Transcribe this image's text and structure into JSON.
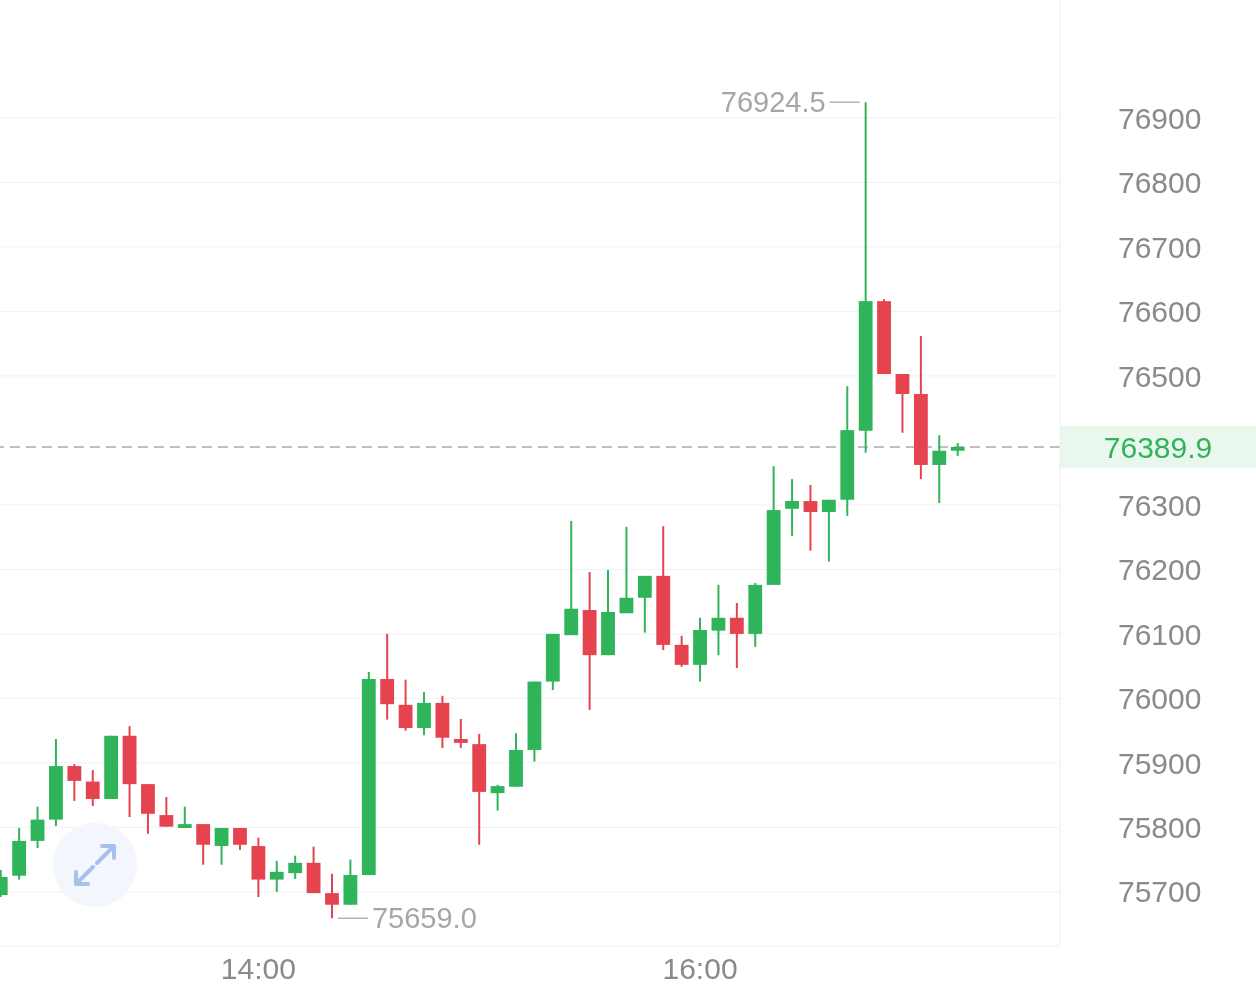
{
  "chart_data": {
    "type": "candlestick",
    "x": [
      12.8333,
      12.9167,
      13.0,
      13.0833,
      13.1667,
      13.25,
      13.3333,
      13.4167,
      13.5,
      13.5833,
      13.6667,
      13.75,
      13.8333,
      13.9167,
      14.0,
      14.0833,
      14.1667,
      14.25,
      14.3333,
      14.4167,
      14.5,
      14.5833,
      14.6667,
      14.75,
      14.8333,
      14.9167,
      15.0,
      15.0833,
      15.1667,
      15.25,
      15.3333,
      15.4167,
      15.5,
      15.5833,
      15.6667,
      15.75,
      15.8333,
      15.9167,
      16.0,
      16.0833,
      16.1667,
      16.25,
      16.3333,
      16.4167,
      16.5,
      16.5833,
      16.6667,
      16.75,
      16.8333,
      16.9167,
      17.0,
      17.0833,
      17.1667
    ],
    "ohlc": [
      [
        75695,
        75734,
        75692,
        75723
      ],
      [
        75725,
        75799,
        75719,
        75779
      ],
      [
        75779,
        75832,
        75768,
        75812
      ],
      [
        75812,
        75937,
        75802,
        75895
      ],
      [
        75895,
        75898,
        75841,
        75872
      ],
      [
        75871,
        75889,
        75833,
        75844
      ],
      [
        75844,
        75942,
        75844,
        75942
      ],
      [
        75942,
        75957,
        75816,
        75867
      ],
      [
        75867,
        75867,
        75790,
        75821
      ],
      [
        75819,
        75847,
        75801,
        75801
      ],
      [
        75799,
        75832,
        75799,
        75805
      ],
      [
        75805,
        75805,
        75742,
        75773
      ],
      [
        75771,
        75799,
        75742,
        75799
      ],
      [
        75799,
        75799,
        75765,
        75773
      ],
      [
        75771,
        75784,
        75692,
        75719
      ],
      [
        75719,
        75748,
        75700,
        75731
      ],
      [
        75729,
        75756,
        75720,
        75745
      ],
      [
        75745,
        75770,
        75698,
        75698
      ],
      [
        75698,
        75728,
        75659.0,
        75680
      ],
      [
        75680,
        75750,
        75680,
        75726
      ],
      [
        75726,
        76041,
        75726,
        76030
      ],
      [
        76030,
        76100,
        75967,
        75991
      ],
      [
        75990,
        76029,
        75950,
        75954
      ],
      [
        75954,
        76010,
        75943,
        75993
      ],
      [
        75993,
        76004,
        75923,
        75939
      ],
      [
        75937,
        75968,
        75923,
        75931
      ],
      [
        75929,
        75945,
        75773,
        75855
      ],
      [
        75853,
        75866,
        75826,
        75864
      ],
      [
        75863,
        75946,
        75863,
        75920
      ],
      [
        75920,
        76026,
        75902,
        76026
      ],
      [
        76026,
        76100,
        76013,
        76100
      ],
      [
        76098,
        76275,
        76098,
        76139
      ],
      [
        76137,
        76196,
        75982,
        76067
      ],
      [
        76067,
        76199,
        76067,
        76134
      ],
      [
        76132,
        76266,
        76132,
        76156
      ],
      [
        76156,
        76190,
        76102,
        76190
      ],
      [
        76190,
        76267,
        76075,
        76083
      ],
      [
        76083,
        76097,
        76049,
        76052
      ],
      [
        76052,
        76125,
        76026,
        76106
      ],
      [
        76105,
        76176,
        76067,
        76125
      ],
      [
        76125,
        76148,
        76047,
        76100
      ],
      [
        76100,
        76179,
        76080,
        76176
      ],
      [
        76176,
        76360,
        76176,
        76292
      ],
      [
        76294,
        76340,
        76252,
        76306
      ],
      [
        76306,
        76331,
        76229,
        76289
      ],
      [
        76289,
        76308,
        76212,
        76308
      ],
      [
        76308,
        76484,
        76283,
        76416
      ],
      [
        76415,
        76924.5,
        76381,
        76616
      ],
      [
        76616,
        76619,
        76503,
        76503
      ],
      [
        76503,
        76503,
        76412,
        76472
      ],
      [
        76472,
        76562,
        76340,
        76362
      ],
      [
        76362,
        76408,
        76303,
        76384
      ],
      [
        76384,
        76396,
        76376,
        76389.9
      ]
    ],
    "colors": [
      "#2fb45a",
      "#2fb45a",
      "#2fb45a",
      "#2fb45a",
      "#e5434e",
      "#e5434e",
      "#2fb45a",
      "#e5434e",
      "#e5434e",
      "#e5434e",
      "#2fb45a",
      "#e5434e",
      "#2fb45a",
      "#e5434e",
      "#e5434e",
      "#2fb45a",
      "#2fb45a",
      "#e5434e",
      "#e5434e",
      "#2fb45a",
      "#2fb45a",
      "#e5434e",
      "#e5434e",
      "#2fb45a",
      "#e5434e",
      "#e5434e",
      "#e5434e",
      "#2fb45a",
      "#2fb45a",
      "#2fb45a",
      "#2fb45a",
      "#2fb45a",
      "#e5434e",
      "#2fb45a",
      "#2fb45a",
      "#2fb45a",
      "#e5434e",
      "#e5434e",
      "#2fb45a",
      "#2fb45a",
      "#e5434e",
      "#2fb45a",
      "#2fb45a",
      "#2fb45a",
      "#e5434e",
      "#2fb45a",
      "#2fb45a",
      "#2fb45a",
      "#e5434e",
      "#e5434e",
      "#e5434e",
      "#2fb45a",
      "#2fb45a"
    ],
    "xlim": [
      12.83,
      17.63
    ],
    "xticks": [
      {
        "value": 14,
        "label": "14:00"
      },
      {
        "value": 16,
        "label": "16:00"
      }
    ],
    "ylim": [
      75616,
      77083
    ],
    "yticks": [
      75700,
      75800,
      75900,
      76000,
      76100,
      76200,
      76300,
      76500,
      76600,
      76700,
      76800,
      76900
    ],
    "grid": "y",
    "ref_lines": [
      {
        "axis": "y",
        "value": 76389.9,
        "label": "76389.9",
        "color": "#aaaaaa",
        "line_style": "dashed"
      }
    ],
    "annotations": [
      {
        "text": "76924.5",
        "x": 16.75,
        "y": 76924.5
      },
      {
        "text": "75659.0",
        "x": 14.3333,
        "y": 75659.0
      }
    ]
  }
}
